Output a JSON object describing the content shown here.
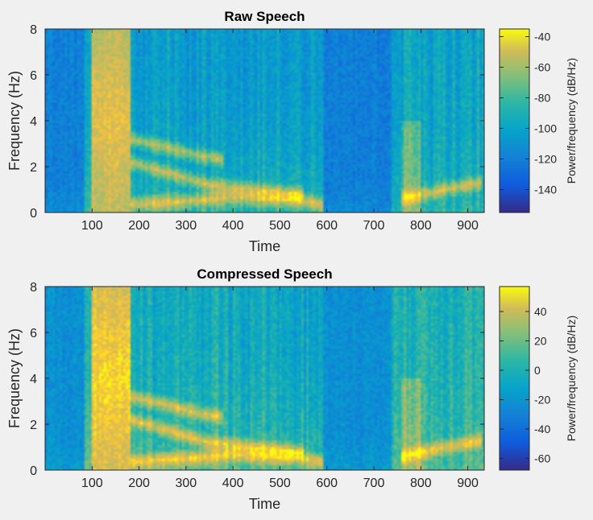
{
  "chart_data": [
    {
      "type": "heatmap",
      "title": "Raw Speech",
      "xlabel": "Time",
      "ylabel": "Frequency (Hz)",
      "xlim": [
        0,
        935
      ],
      "ylim": [
        0,
        8
      ],
      "xticks": [
        100,
        200,
        300,
        400,
        500,
        600,
        700,
        800,
        900
      ],
      "yticks": [
        0,
        2,
        4,
        6,
        8
      ],
      "colorbar": {
        "label": "Power/frequency (dB/Hz)",
        "range": [
          -155,
          -35
        ],
        "ticks": [
          -140,
          -120,
          -100,
          -80,
          -60,
          -40
        ]
      },
      "grid": false,
      "colormap": "parula",
      "features": {
        "voiced_segments": [
          [
            85,
            590
          ],
          [
            740,
            935
          ]
        ],
        "silence_segments": [
          [
            0,
            85
          ],
          [
            590,
            740
          ]
        ],
        "high_energy_burst": [
          100,
          180
        ],
        "formant_tracks_hz": {
          "f1": [
            [
              180,
              0.35
            ],
            [
              300,
              0.5
            ],
            [
              400,
              0.65
            ],
            [
              550,
              0.5
            ],
            [
              600,
              0.3
            ]
          ],
          "f2": [
            [
              180,
              2.2
            ],
            [
              250,
              1.8
            ],
            [
              350,
              1.2
            ],
            [
              450,
              1.0
            ],
            [
              550,
              0.8
            ]
          ],
          "f3": [
            [
              180,
              3.2
            ],
            [
              250,
              2.9
            ],
            [
              320,
              2.5
            ],
            [
              380,
              2.3
            ]
          ],
          "f_end": [
            [
              760,
              0.6
            ],
            [
              850,
              1.0
            ],
            [
              930,
              1.3
            ]
          ]
        },
        "vertical_striations": [
          [
            190,
            560
          ],
          [
            560,
            595
          ],
          [
            690,
            740
          ],
          [
            740,
            930
          ]
        ]
      }
    },
    {
      "type": "heatmap",
      "title": "Compressed Speech",
      "xlabel": "Time",
      "ylabel": "Frequency (Hz)",
      "xlim": [
        0,
        935
      ],
      "ylim": [
        0,
        8
      ],
      "xticks": [
        100,
        200,
        300,
        400,
        500,
        600,
        700,
        800,
        900
      ],
      "yticks": [
        0,
        2,
        4,
        6,
        8
      ],
      "colorbar": {
        "label": "Power/frequency (dB/Hz)",
        "range": [
          -68,
          57
        ],
        "ticks": [
          -60,
          -40,
          -20,
          0,
          20,
          40
        ]
      },
      "grid": false,
      "colormap": "parula",
      "features": {
        "voiced_segments": [
          [
            85,
            590
          ],
          [
            740,
            935
          ]
        ],
        "silence_segments": [
          [
            0,
            85
          ],
          [
            590,
            740
          ]
        ],
        "high_energy_burst": [
          100,
          180
        ],
        "formant_tracks_hz": {
          "f1": [
            [
              180,
              0.35
            ],
            [
              300,
              0.5
            ],
            [
              400,
              0.65
            ],
            [
              550,
              0.5
            ],
            [
              600,
              0.3
            ]
          ],
          "f2": [
            [
              180,
              2.2
            ],
            [
              250,
              1.8
            ],
            [
              350,
              1.2
            ],
            [
              450,
              1.0
            ],
            [
              550,
              0.8
            ]
          ],
          "f3": [
            [
              180,
              3.2
            ],
            [
              250,
              2.9
            ],
            [
              320,
              2.5
            ],
            [
              380,
              2.3
            ]
          ],
          "f_end": [
            [
              760,
              0.6
            ],
            [
              850,
              1.0
            ],
            [
              930,
              1.3
            ]
          ]
        },
        "vertical_striations": [
          [
            190,
            560
          ],
          [
            560,
            595
          ],
          [
            690,
            740
          ],
          [
            740,
            930
          ]
        ]
      }
    }
  ]
}
